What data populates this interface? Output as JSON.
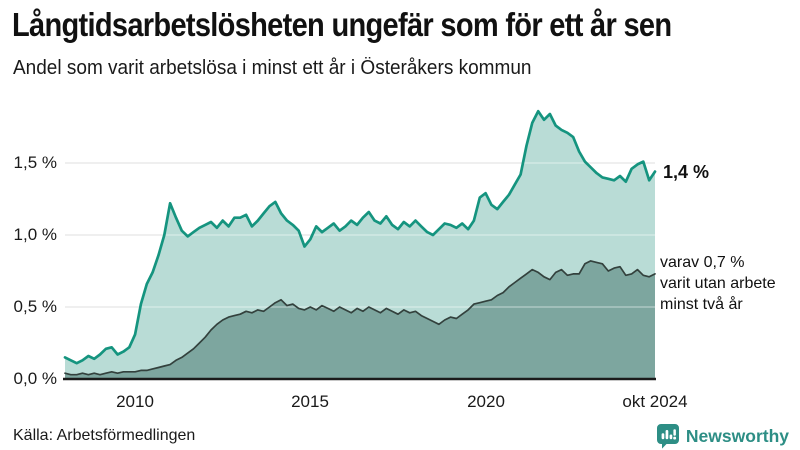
{
  "header": {
    "title": "Långtidsarbetslösheten ungefär som för ett år sen",
    "subtitle": "Andel som varit arbetslösa i minst ett år i Österåkers kommun"
  },
  "chart_data": {
    "type": "area",
    "title": "Långtidsarbetslösheten ungefär som för ett år sen",
    "subtitle": "Andel som varit arbetslösa i minst ett år i Österåkers kommun",
    "x_start_year": 2008,
    "x_end": "okt 2024",
    "x_tick_labels": [
      "2010",
      "2015",
      "2020",
      "okt 2024"
    ],
    "y_tick_labels": [
      "0,0 %",
      "0,5 %",
      "1,0 %",
      "1,5 %"
    ],
    "y_tick_values": [
      0,
      0.5,
      1.0,
      1.5
    ],
    "ylim": [
      0,
      1.95
    ],
    "grid": true,
    "legend_position": "none",
    "series": [
      {
        "name": "Andel arbetslösa minst ett år",
        "color": "#15947f",
        "fill": "#b9dcd6",
        "values": [
          0.15,
          0.13,
          0.11,
          0.13,
          0.16,
          0.14,
          0.17,
          0.21,
          0.22,
          0.17,
          0.19,
          0.22,
          0.31,
          0.52,
          0.66,
          0.74,
          0.86,
          1.0,
          1.22,
          1.12,
          1.03,
          0.99,
          1.02,
          1.05,
          1.07,
          1.09,
          1.05,
          1.1,
          1.06,
          1.12,
          1.12,
          1.14,
          1.06,
          1.1,
          1.15,
          1.2,
          1.23,
          1.15,
          1.1,
          1.07,
          1.03,
          0.92,
          0.97,
          1.06,
          1.02,
          1.05,
          1.08,
          1.03,
          1.06,
          1.1,
          1.07,
          1.12,
          1.16,
          1.1,
          1.08,
          1.13,
          1.07,
          1.04,
          1.09,
          1.06,
          1.1,
          1.06,
          1.02,
          1.0,
          1.04,
          1.08,
          1.07,
          1.05,
          1.08,
          1.04,
          1.1,
          1.26,
          1.29,
          1.21,
          1.18,
          1.23,
          1.28,
          1.35,
          1.42,
          1.62,
          1.78,
          1.86,
          1.8,
          1.84,
          1.76,
          1.73,
          1.71,
          1.68,
          1.58,
          1.51,
          1.47,
          1.43,
          1.4,
          1.39,
          1.38,
          1.41,
          1.37,
          1.46,
          1.49,
          1.51,
          1.38,
          1.44
        ]
      },
      {
        "name": "Andel arbetslösa minst två år",
        "color": "#33413d",
        "fill": "#7da69f",
        "values": [
          0.04,
          0.03,
          0.03,
          0.04,
          0.03,
          0.04,
          0.03,
          0.04,
          0.05,
          0.04,
          0.05,
          0.05,
          0.05,
          0.06,
          0.06,
          0.07,
          0.08,
          0.09,
          0.1,
          0.13,
          0.15,
          0.18,
          0.21,
          0.25,
          0.29,
          0.34,
          0.38,
          0.41,
          0.43,
          0.44,
          0.45,
          0.47,
          0.46,
          0.48,
          0.47,
          0.5,
          0.53,
          0.55,
          0.51,
          0.52,
          0.49,
          0.48,
          0.5,
          0.48,
          0.51,
          0.49,
          0.47,
          0.5,
          0.48,
          0.46,
          0.49,
          0.47,
          0.5,
          0.48,
          0.46,
          0.49,
          0.47,
          0.45,
          0.48,
          0.46,
          0.47,
          0.44,
          0.42,
          0.4,
          0.38,
          0.41,
          0.43,
          0.42,
          0.45,
          0.48,
          0.52,
          0.53,
          0.54,
          0.55,
          0.58,
          0.6,
          0.64,
          0.67,
          0.7,
          0.73,
          0.76,
          0.74,
          0.71,
          0.69,
          0.74,
          0.76,
          0.72,
          0.73,
          0.73,
          0.8,
          0.82,
          0.81,
          0.8,
          0.75,
          0.77,
          0.78,
          0.72,
          0.73,
          0.76,
          0.72,
          0.71,
          0.73
        ]
      }
    ],
    "annotations": {
      "latest_value": "1,4 %",
      "secondary_line1": "varav 0,7 %",
      "secondary_line2": "varit utan arbete",
      "secondary_line3": "minst två år"
    }
  },
  "footer": {
    "source": "Källa: Arbetsförmedlingen",
    "brand": "Newsworthy"
  },
  "colors": {
    "accent_teal": "#15947f",
    "light_fill": "#b9dcd6",
    "dark_fill": "#7da69f",
    "dark_line": "#33413d",
    "grid": "#d6d6d6",
    "grid_overlay": "rgba(255,255,255,0.45)",
    "axis": "#1b1b1b",
    "brand_teal": "#2d8e85"
  }
}
